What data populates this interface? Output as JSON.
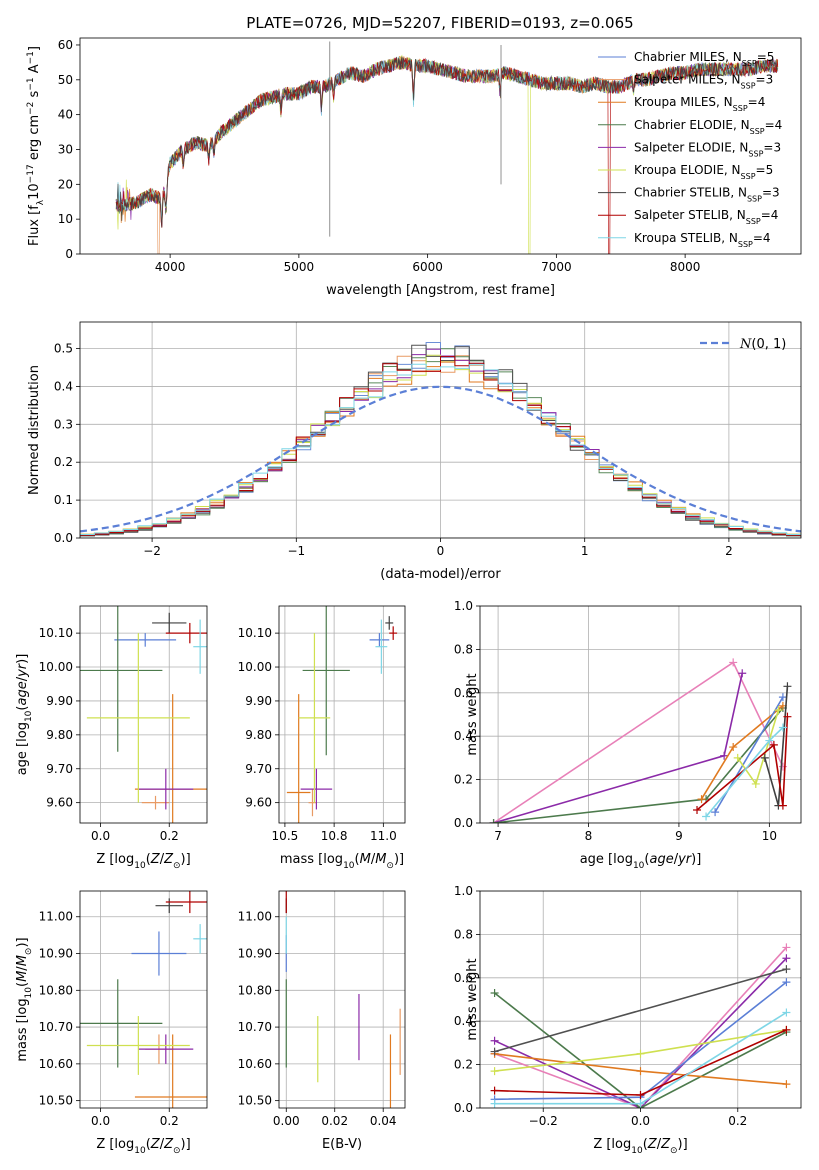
{
  "title": "PLATE=0726, MJD=52207, FIBERID=0193, z=0.065",
  "series_colors": [
    "#5b7fd6",
    "#e89a64",
    "#e07a20",
    "#4c7a4c",
    "#8b2aa8",
    "#cfe050",
    "#404040",
    "#b00000",
    "#7fd6e6"
  ],
  "panel2_colors": [
    "#6b8fd6",
    "#e89a64",
    "#e07a20",
    "#5b8a5b",
    "#8b2aa8",
    "#cfe050",
    "#505050",
    "#b00000",
    "#7fd6e6"
  ],
  "chart_data": [
    {
      "type": "line",
      "name": "spectrum",
      "xlabel": "wavelength [Angstrom, rest frame]",
      "ylabel": "Flux [f_λ 10^-17 erg cm^-2 s^-1 A^-1]",
      "xlim": [
        3300,
        8900
      ],
      "ylim": [
        0,
        62
      ],
      "xticks": [
        4000,
        5000,
        6000,
        7000,
        8000
      ],
      "yticks": [
        0,
        10,
        20,
        30,
        40,
        50,
        60
      ],
      "grid": false,
      "legend_position": "top-right",
      "legend": [
        {
          "label": "Chabrier MILES, N",
          "sub": "SSP",
          "suffix": "=5",
          "color": "#5b7fd6"
        },
        {
          "label": "Salpeter MILES, N",
          "sub": "SSP",
          "suffix": "=3",
          "color": "#e89a64"
        },
        {
          "label": "Kroupa MILES, N",
          "sub": "SSP",
          "suffix": "=4",
          "color": "#e07a20"
        },
        {
          "label": "Chabrier ELODIE, N",
          "sub": "SSP",
          "suffix": "=4",
          "color": "#4c7a4c"
        },
        {
          "label": "Salpeter ELODIE, N",
          "sub": "SSP",
          "suffix": "=3",
          "color": "#8b2aa8"
        },
        {
          "label": "Kroupa ELODIE, N",
          "sub": "SSP",
          "suffix": "=5",
          "color": "#cfe050"
        },
        {
          "label": "Chabrier STELIB, N",
          "sub": "SSP",
          "suffix": "=3",
          "color": "#404040"
        },
        {
          "label": "Salpeter STELIB, N",
          "sub": "SSP",
          "suffix": "=4",
          "color": "#b00000"
        },
        {
          "label": "Kroupa STELIB, N",
          "sub": "SSP",
          "suffix": "=4",
          "color": "#7fd6e6"
        }
      ],
      "continuum": [
        [
          3580,
          14
        ],
        [
          3650,
          14
        ],
        [
          3750,
          15
        ],
        [
          3850,
          17
        ],
        [
          3920,
          16
        ],
        [
          3960,
          18
        ],
        [
          4000,
          26
        ],
        [
          4100,
          30
        ],
        [
          4200,
          32
        ],
        [
          4300,
          31
        ],
        [
          4400,
          35
        ],
        [
          4500,
          38
        ],
        [
          4600,
          41
        ],
        [
          4700,
          44
        ],
        [
          4800,
          45
        ],
        [
          4900,
          46
        ],
        [
          5000,
          46
        ],
        [
          5100,
          48
        ],
        [
          5200,
          48
        ],
        [
          5300,
          50
        ],
        [
          5400,
          52
        ],
        [
          5500,
          51
        ],
        [
          5600,
          53
        ],
        [
          5700,
          54
        ],
        [
          5800,
          55
        ],
        [
          5900,
          54
        ],
        [
          6000,
          54
        ],
        [
          6100,
          53
        ],
        [
          6200,
          52
        ],
        [
          6300,
          51
        ],
        [
          6400,
          51
        ],
        [
          6500,
          51
        ],
        [
          6600,
          52
        ],
        [
          6700,
          51
        ],
        [
          6800,
          50
        ],
        [
          6900,
          49
        ],
        [
          7000,
          49
        ],
        [
          7100,
          49
        ],
        [
          7200,
          48
        ],
        [
          7300,
          49
        ],
        [
          7400,
          48
        ],
        [
          7500,
          48
        ],
        [
          7600,
          50
        ],
        [
          7700,
          50
        ],
        [
          7800,
          51
        ],
        [
          7900,
          52
        ],
        [
          8000,
          52
        ],
        [
          8100,
          53
        ],
        [
          8200,
          53
        ],
        [
          8300,
          53
        ],
        [
          8400,
          53
        ],
        [
          8500,
          53
        ],
        [
          8600,
          54
        ],
        [
          8700,
          54
        ]
      ],
      "model_cut": [
        [
          3910,
          0
        ],
        [
          6790,
          0
        ],
        [
          7410,
          0
        ]
      ],
      "spikes": [
        [
          5240,
          5,
          61
        ],
        [
          6570,
          20,
          60
        ]
      ]
    },
    {
      "type": "bar",
      "name": "residual-histogram",
      "xlabel": "(data-model)/error",
      "ylabel": "Normed distribution",
      "xlim": [
        -2.5,
        2.5
      ],
      "ylim": [
        0,
        0.57
      ],
      "xticks": [
        -2,
        -1,
        0,
        1,
        2
      ],
      "yticks": [
        0.0,
        0.1,
        0.2,
        0.3,
        0.4,
        0.5
      ],
      "grid": true,
      "bin_width": 0.1,
      "reference_curve": {
        "label": "N(0,1)",
        "color": "#5b7fd6",
        "style": "dashed"
      },
      "legend_position": "top-right"
    },
    {
      "type": "scatter",
      "name": "age-vs-Z",
      "xlabel": "Z [log10(Z/Z_sun)]",
      "ylabel": "age [log10(age/yr)]",
      "xlim": [
        -0.06,
        0.31
      ],
      "ylim": [
        9.54,
        10.18
      ],
      "xticks": [
        0.0,
        0.2
      ],
      "yticks": [
        9.6,
        9.7,
        9.8,
        9.9,
        10.0,
        10.1
      ],
      "grid": true,
      "points": [
        {
          "x": 0.13,
          "y": 10.08,
          "xerr": 0.09,
          "yerr": 0.02,
          "color": "#5b7fd6"
        },
        {
          "x": 0.16,
          "y": 9.6,
          "xerr": 0.04,
          "yerr": 0.02,
          "color": "#e89a64"
        },
        {
          "x": 0.21,
          "y": 9.64,
          "xerr": 0.11,
          "yerr": 0.28,
          "color": "#e07a20"
        },
        {
          "x": 0.05,
          "y": 9.99,
          "xerr": 0.13,
          "yerr": 0.24,
          "color": "#4c7a4c"
        },
        {
          "x": 0.19,
          "y": 9.64,
          "xerr": 0.08,
          "yerr": 0.06,
          "color": "#8b2aa8"
        },
        {
          "x": 0.11,
          "y": 9.85,
          "xerr": 0.15,
          "yerr": 0.25,
          "color": "#cfe050"
        },
        {
          "x": 0.2,
          "y": 10.13,
          "xerr": 0.05,
          "yerr": 0.03,
          "color": "#404040"
        },
        {
          "x": 0.26,
          "y": 10.1,
          "xerr": 0.07,
          "yerr": 0.03,
          "color": "#b00000"
        },
        {
          "x": 0.29,
          "y": 10.06,
          "xerr": 0.02,
          "yerr": 0.08,
          "color": "#7fd6e6"
        }
      ]
    },
    {
      "type": "scatter",
      "name": "age-vs-mass",
      "xlabel": "mass [log10(M/M_sun)]",
      "ylabel": "",
      "xlim": [
        10.47,
        11.11
      ],
      "ylim": [
        9.54,
        10.18
      ],
      "xticks": [
        10.5,
        10.75,
        11.0
      ],
      "yticks": [
        9.6,
        9.7,
        9.8,
        9.9,
        10.0,
        10.1
      ],
      "grid": true,
      "points": [
        {
          "x": 10.98,
          "y": 10.08,
          "xerr": 0.05,
          "yerr": 0.02,
          "color": "#5b7fd6"
        },
        {
          "x": 10.64,
          "y": 9.6,
          "xerr": 0.02,
          "yerr": 0.04,
          "color": "#e89a64"
        },
        {
          "x": 10.57,
          "y": 9.63,
          "xerr": 0.06,
          "yerr": 0.29,
          "color": "#e07a20"
        },
        {
          "x": 10.71,
          "y": 9.99,
          "xerr": 0.12,
          "yerr": 0.25,
          "color": "#4c7a4c"
        },
        {
          "x": 10.66,
          "y": 9.64,
          "xerr": 0.08,
          "yerr": 0.06,
          "color": "#8b2aa8"
        },
        {
          "x": 10.65,
          "y": 9.85,
          "xerr": 0.08,
          "yerr": 0.25,
          "color": "#cfe050"
        },
        {
          "x": 11.03,
          "y": 10.13,
          "xerr": 0.02,
          "yerr": 0.02,
          "color": "#404040"
        },
        {
          "x": 11.05,
          "y": 10.1,
          "xerr": 0.02,
          "yerr": 0.02,
          "color": "#b00000"
        },
        {
          "x": 10.99,
          "y": 10.06,
          "xerr": 0.03,
          "yerr": 0.08,
          "color": "#7fd6e6"
        }
      ]
    },
    {
      "type": "line",
      "name": "mass-weight-vs-age",
      "xlabel": "age [log10(age/yr)]",
      "ylabel": "mass weight",
      "xlim": [
        6.8,
        10.35
      ],
      "ylim": [
        0,
        1.0
      ],
      "xticks": [
        7,
        8,
        9,
        10
      ],
      "yticks": [
        0.0,
        0.2,
        0.4,
        0.6,
        0.8,
        1.0
      ],
      "grid": true,
      "series": [
        {
          "color": "#e880b8",
          "points": [
            [
              6.95,
              0.0
            ],
            [
              9.6,
              0.74
            ],
            [
              10.15,
              0.26
            ]
          ]
        },
        {
          "color": "#8b2aa8",
          "points": [
            [
              6.95,
              0.0
            ],
            [
              9.5,
              0.31
            ],
            [
              9.7,
              0.69
            ]
          ]
        },
        {
          "color": "#4c7a4c",
          "points": [
            [
              6.95,
              0.0
            ],
            [
              9.3,
              0.11
            ],
            [
              10.15,
              0.53
            ]
          ]
        },
        {
          "color": "#e07a20",
          "points": [
            [
              9.25,
              0.11
            ],
            [
              9.6,
              0.35
            ],
            [
              10.15,
              0.54
            ]
          ]
        },
        {
          "color": "#5b7fd6",
          "points": [
            [
              9.4,
              0.05
            ],
            [
              10.15,
              0.58
            ]
          ]
        },
        {
          "color": "#cfe050",
          "points": [
            [
              9.65,
              0.3
            ],
            [
              9.85,
              0.18
            ],
            [
              10.1,
              0.52
            ]
          ]
        },
        {
          "color": "#404040",
          "points": [
            [
              9.95,
              0.3
            ],
            [
              10.1,
              0.08
            ],
            [
              10.2,
              0.63
            ]
          ]
        },
        {
          "color": "#b00000",
          "points": [
            [
              9.2,
              0.06
            ],
            [
              10.05,
              0.36
            ],
            [
              10.15,
              0.08
            ],
            [
              10.2,
              0.49
            ]
          ]
        },
        {
          "color": "#7fd6e6",
          "points": [
            [
              9.3,
              0.03
            ],
            [
              10.0,
              0.38
            ],
            [
              10.15,
              0.44
            ]
          ]
        }
      ]
    },
    {
      "type": "scatter",
      "name": "mass-vs-Z",
      "xlabel": "Z [log10(Z/Z_sun)]",
      "ylabel": "mass [log10(M/M_sun)]",
      "xlim": [
        -0.06,
        0.31
      ],
      "ylim": [
        10.48,
        11.07
      ],
      "xticks": [
        0.0,
        0.2
      ],
      "yticks": [
        10.5,
        10.6,
        10.7,
        10.8,
        10.9,
        11.0
      ],
      "grid": true,
      "points": [
        {
          "x": 0.17,
          "y": 10.9,
          "xerr": 0.08,
          "yerr": 0.06,
          "color": "#5b7fd6"
        },
        {
          "x": 0.17,
          "y": 10.64,
          "xerr": 0.04,
          "yerr": 0.04,
          "color": "#e89a64"
        },
        {
          "x": 0.21,
          "y": 10.51,
          "xerr": 0.11,
          "yerr": 0.17,
          "color": "#e07a20"
        },
        {
          "x": 0.05,
          "y": 10.71,
          "xerr": 0.13,
          "yerr": 0.12,
          "color": "#4c7a4c"
        },
        {
          "x": 0.19,
          "y": 10.64,
          "xerr": 0.08,
          "yerr": 0.04,
          "color": "#8b2aa8"
        },
        {
          "x": 0.11,
          "y": 10.65,
          "xerr": 0.15,
          "yerr": 0.08,
          "color": "#cfe050"
        },
        {
          "x": 0.2,
          "y": 11.03,
          "xerr": 0.04,
          "yerr": 0.02,
          "color": "#404040"
        },
        {
          "x": 0.26,
          "y": 11.04,
          "xerr": 0.07,
          "yerr": 0.03,
          "color": "#b00000"
        },
        {
          "x": 0.29,
          "y": 10.94,
          "xerr": 0.02,
          "yerr": 0.04,
          "color": "#7fd6e6"
        }
      ]
    },
    {
      "type": "scatter",
      "name": "mass-vs-ebv",
      "xlabel": "E(B-V)",
      "ylabel": "",
      "xlim": [
        -0.003,
        0.049
      ],
      "ylim": [
        10.48,
        11.07
      ],
      "xticks": [
        0.0,
        0.02,
        0.04
      ],
      "yticks": [
        10.5,
        10.6,
        10.7,
        10.8,
        10.9,
        11.0
      ],
      "grid": true,
      "points": [
        {
          "x": 0.0,
          "y": 10.9,
          "xerr": 0.0,
          "yerr": 0.05,
          "color": "#5b7fd6"
        },
        {
          "x": 0.047,
          "y": 10.66,
          "xerr": 0.0,
          "yerr": 0.09,
          "color": "#e89a64"
        },
        {
          "x": 0.043,
          "y": 10.56,
          "xerr": 0.0,
          "yerr": 0.12,
          "color": "#e07a20"
        },
        {
          "x": 0.0,
          "y": 10.71,
          "xerr": 0.0,
          "yerr": 0.12,
          "color": "#4c7a4c"
        },
        {
          "x": 0.03,
          "y": 10.7,
          "xerr": 0.0,
          "yerr": 0.09,
          "color": "#8b2aa8"
        },
        {
          "x": 0.013,
          "y": 10.64,
          "xerr": 0.0,
          "yerr": 0.09,
          "color": "#cfe050"
        },
        {
          "x": 0.0,
          "y": 11.03,
          "xerr": 0.0,
          "yerr": 0.02,
          "color": "#404040"
        },
        {
          "x": 0.0,
          "y": 11.04,
          "xerr": 0.0,
          "yerr": 0.03,
          "color": "#b00000"
        },
        {
          "x": 0.0,
          "y": 10.95,
          "xerr": 0.0,
          "yerr": 0.05,
          "color": "#7fd6e6"
        }
      ]
    },
    {
      "type": "line",
      "name": "mass-weight-vs-Z",
      "xlabel": "Z [log10(Z/Z_sun)]",
      "ylabel": "mass weight",
      "xlim": [
        -0.33,
        0.33
      ],
      "ylim": [
        0,
        1.0
      ],
      "xticks": [
        -0.2,
        0.0,
        0.2
      ],
      "yticks": [
        0.0,
        0.2,
        0.4,
        0.6,
        0.8,
        1.0
      ],
      "grid": true,
      "series": [
        {
          "color": "#e880b8",
          "points": [
            [
              -0.3,
              0.25
            ],
            [
              0.0,
              0.0
            ],
            [
              0.3,
              0.74
            ]
          ]
        },
        {
          "color": "#8b2aa8",
          "points": [
            [
              -0.3,
              0.31
            ],
            [
              0.0,
              0.0
            ],
            [
              0.3,
              0.69
            ]
          ]
        },
        {
          "color": "#4c7a4c",
          "points": [
            [
              -0.3,
              0.53
            ],
            [
              0.0,
              0.0
            ],
            [
              0.3,
              0.35
            ]
          ]
        },
        {
          "color": "#e07a20",
          "points": [
            [
              -0.3,
              0.25
            ],
            [
              0.0,
              0.17
            ],
            [
              0.3,
              0.11
            ]
          ]
        },
        {
          "color": "#5b7fd6",
          "points": [
            [
              -0.3,
              0.04
            ],
            [
              0.0,
              0.05
            ],
            [
              0.3,
              0.58
            ]
          ]
        },
        {
          "color": "#cfe050",
          "points": [
            [
              -0.3,
              0.17
            ],
            [
              0.0,
              0.25
            ],
            [
              0.3,
              0.36
            ]
          ]
        },
        {
          "color": "#505050",
          "points": [
            [
              -0.3,
              0.26
            ],
            [
              0.3,
              0.64
            ]
          ]
        },
        {
          "color": "#b00000",
          "points": [
            [
              -0.3,
              0.08
            ],
            [
              0.0,
              0.06
            ],
            [
              0.3,
              0.36
            ]
          ]
        },
        {
          "color": "#7fd6e6",
          "points": [
            [
              -0.3,
              0.02
            ],
            [
              0.0,
              0.02
            ],
            [
              0.3,
              0.44
            ]
          ]
        }
      ]
    }
  ]
}
